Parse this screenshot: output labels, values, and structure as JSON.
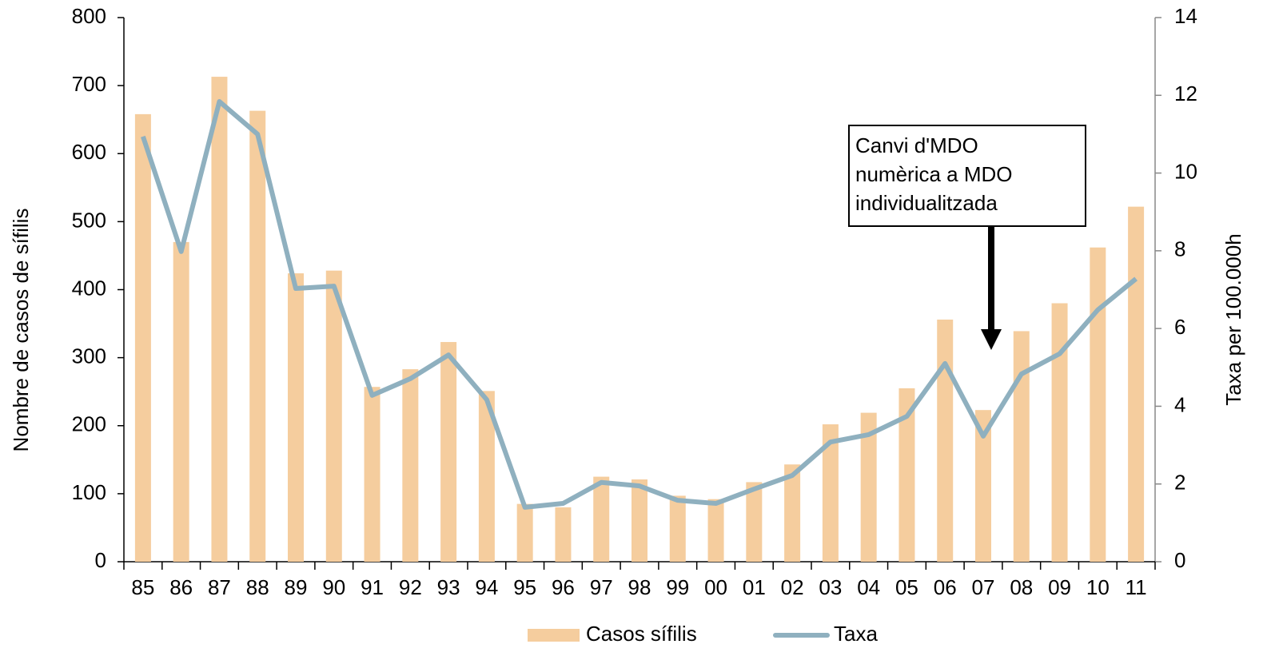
{
  "chart_data": {
    "type": "bar-line",
    "categories": [
      "85",
      "86",
      "87",
      "88",
      "89",
      "90",
      "91",
      "92",
      "93",
      "94",
      "95",
      "96",
      "97",
      "98",
      "99",
      "00",
      "01",
      "02",
      "03",
      "04",
      "05",
      "06",
      "07",
      "08",
      "09",
      "10",
      "11"
    ],
    "series": [
      {
        "name": "Casos sífilis",
        "type": "bar",
        "color": "#f5cd9e",
        "values": [
          658,
          470,
          713,
          663,
          424,
          428,
          257,
          283,
          323,
          251,
          85,
          80,
          125,
          121,
          97,
          92,
          117,
          143,
          202,
          219,
          255,
          356,
          223,
          339,
          380,
          462,
          522
        ]
      },
      {
        "name": "Taxa",
        "type": "line",
        "axis": "y2",
        "color": "#8fb0bf",
        "values": [
          10.94,
          7.98,
          11.84,
          11.0,
          7.03,
          7.09,
          4.28,
          4.71,
          5.32,
          4.17,
          1.4,
          1.5,
          2.04,
          1.95,
          1.58,
          1.5,
          1.87,
          2.22,
          3.08,
          3.27,
          3.74,
          5.1,
          3.23,
          4.83,
          5.35,
          6.48,
          7.28
        ]
      }
    ],
    "ylabel": "Nombre de casos de sífilis",
    "y2label": "Taxa per 100.000h",
    "ylim": [
      0,
      800
    ],
    "yticks": [
      0,
      100,
      200,
      300,
      400,
      500,
      600,
      700,
      800
    ],
    "y2lim": [
      0,
      14
    ],
    "y2ticks": [
      0,
      2,
      4,
      6,
      8,
      10,
      12,
      14
    ],
    "annotation": [
      "Canvi d'MDO",
      "numèrica a MDO",
      "individualitzada"
    ],
    "legend": "bottom"
  }
}
